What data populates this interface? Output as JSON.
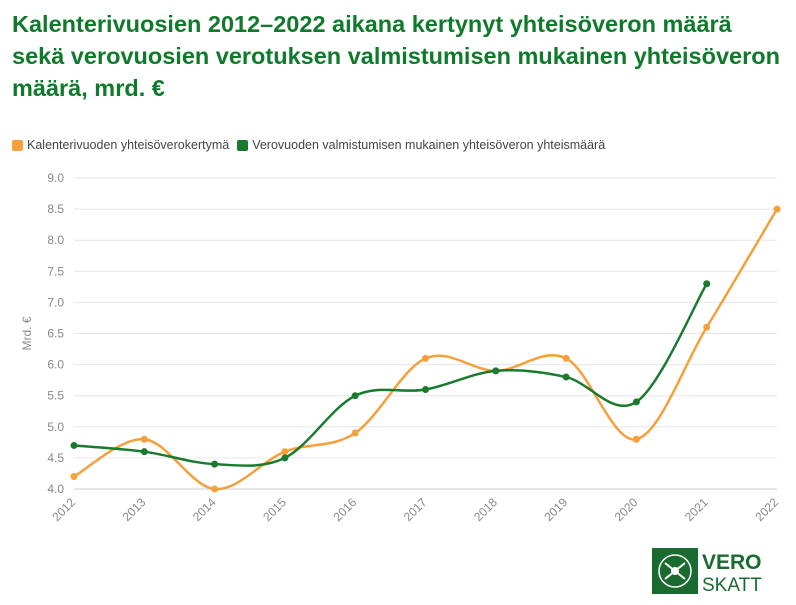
{
  "title": "Kalenterivuosien 2012–2022 aikana kertynyt yhteisöveron määrä sekä verovuosien verotuksen valmistumisen mukainen yhteisöveron määrä, mrd. €",
  "colors": {
    "title": "#0f7a2b",
    "orange": "#f5a03c",
    "green": "#1a7a2e",
    "grid": "#e6e6e6",
    "axis": "#888888"
  },
  "logo": {
    "line1": "VERO",
    "line2": "SKATT"
  },
  "chart_data": {
    "type": "line",
    "categories": [
      "2012",
      "2013",
      "2014",
      "2015",
      "2016",
      "2017",
      "2018",
      "2019",
      "2020",
      "2021",
      "2022"
    ],
    "ylabel": "Mrd. €",
    "ylim": [
      4.0,
      9.0
    ],
    "yticks": [
      "4.0",
      "4.5",
      "5.0",
      "5.5",
      "6.0",
      "6.5",
      "7.0",
      "7.5",
      "8.0",
      "8.5",
      "9.0"
    ],
    "grid": true,
    "legend_position": "top-left",
    "series": [
      {
        "name": "Kalenterivuoden yhteisöverokertymä",
        "color": "#f5a03c",
        "values": [
          4.2,
          4.8,
          4.0,
          4.6,
          4.9,
          6.1,
          5.9,
          6.1,
          4.8,
          6.6,
          8.5
        ]
      },
      {
        "name": "Verovuoden valmistumisen mukainen yhteisöveron yhteismäärä",
        "color": "#1a7a2e",
        "values": [
          4.7,
          4.6,
          4.4,
          4.5,
          5.5,
          5.6,
          5.9,
          5.8,
          5.4,
          7.3,
          null
        ]
      }
    ]
  }
}
